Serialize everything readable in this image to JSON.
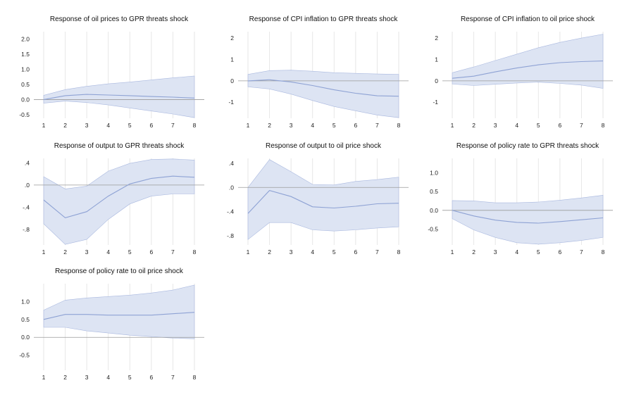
{
  "colors": {
    "band_fill": "#dde4f3",
    "band_edge": "#a9b8df",
    "line": "#8ea2d4",
    "grid": "#e6e6e6",
    "zero_line": "#9a9a9a"
  },
  "chart_data": [
    {
      "type": "area",
      "title": "Response of oil prices to GPR threats shock",
      "x": [
        1,
        2,
        3,
        4,
        5,
        6,
        7,
        8
      ],
      "xticks": [
        "1",
        "2",
        "3",
        "4",
        "5",
        "6",
        "7",
        "8"
      ],
      "yticks": [
        2.0,
        1.5,
        1.0,
        0.5,
        0.0,
        -0.5
      ],
      "ytick_labels": [
        "2.0",
        "1.5",
        "1.0",
        "0.5",
        "0.0",
        "-0.5"
      ],
      "ylim": [
        -0.62,
        2.25
      ],
      "grid": true,
      "series": [
        {
          "role": "response",
          "values": [
            0.0,
            0.13,
            0.17,
            0.15,
            0.13,
            0.1,
            0.08,
            0.05
          ]
        },
        {
          "role": "upper",
          "values": [
            0.14,
            0.33,
            0.44,
            0.52,
            0.58,
            0.65,
            0.72,
            0.78
          ]
        },
        {
          "role": "lower",
          "values": [
            -0.12,
            -0.05,
            -0.1,
            -0.18,
            -0.28,
            -0.38,
            -0.48,
            -0.6
          ]
        }
      ]
    },
    {
      "type": "area",
      "title": "Response of CPI inflation to GPR threats shock",
      "x": [
        1,
        2,
        3,
        4,
        5,
        6,
        7,
        8
      ],
      "xticks": [
        "1",
        "2",
        "3",
        "4",
        "5",
        "6",
        "7",
        "8"
      ],
      "yticks": [
        2,
        1,
        0,
        -1
      ],
      "ytick_labels": [
        "2",
        "1",
        "0",
        "-1"
      ],
      "ylim": [
        -1.75,
        2.3
      ],
      "grid": true,
      "series": [
        {
          "role": "response",
          "values": [
            0.0,
            0.05,
            -0.05,
            -0.22,
            -0.42,
            -0.58,
            -0.7,
            -0.72
          ]
        },
        {
          "role": "upper",
          "values": [
            0.3,
            0.48,
            0.5,
            0.45,
            0.38,
            0.35,
            0.32,
            0.3
          ]
        },
        {
          "role": "lower",
          "values": [
            -0.28,
            -0.38,
            -0.62,
            -0.92,
            -1.2,
            -1.4,
            -1.6,
            -1.72
          ]
        }
      ]
    },
    {
      "type": "area",
      "title": "Response of CPI inflation to oil price shock",
      "x": [
        1,
        2,
        3,
        4,
        5,
        6,
        7,
        8
      ],
      "xticks": [
        "1",
        "2",
        "3",
        "4",
        "5",
        "6",
        "7",
        "8"
      ],
      "yticks": [
        2,
        1,
        0,
        -1
      ],
      "ytick_labels": [
        "2",
        "1",
        "0",
        "-1"
      ],
      "ylim": [
        -1.75,
        2.3
      ],
      "grid": true,
      "series": [
        {
          "role": "response",
          "values": [
            0.12,
            0.22,
            0.42,
            0.6,
            0.75,
            0.85,
            0.9,
            0.93
          ]
        },
        {
          "role": "upper",
          "values": [
            0.38,
            0.65,
            0.95,
            1.25,
            1.55,
            1.8,
            2.0,
            2.18
          ]
        },
        {
          "role": "lower",
          "values": [
            -0.15,
            -0.22,
            -0.16,
            -0.1,
            -0.06,
            -0.12,
            -0.2,
            -0.35
          ]
        }
      ]
    },
    {
      "type": "area",
      "title": "Response of output to GPR threats shock",
      "x": [
        1,
        2,
        3,
        4,
        5,
        6,
        7,
        8
      ],
      "xticks": [
        "1",
        "2",
        "3",
        "4",
        "5",
        "6",
        "7",
        "8"
      ],
      "yticks": [
        0.4,
        0.0,
        -0.4,
        -0.8
      ],
      "ytick_labels": [
        ".4",
        ".0",
        "-.4",
        "-.8"
      ],
      "ylim": [
        -1.08,
        0.48
      ],
      "grid": true,
      "series": [
        {
          "role": "response",
          "values": [
            -0.27,
            -0.59,
            -0.48,
            -0.2,
            0.02,
            0.12,
            0.16,
            0.14
          ]
        },
        {
          "role": "upper",
          "values": [
            0.15,
            -0.07,
            -0.02,
            0.25,
            0.39,
            0.46,
            0.47,
            0.45
          ]
        },
        {
          "role": "lower",
          "values": [
            -0.7,
            -1.07,
            -0.98,
            -0.62,
            -0.34,
            -0.2,
            -0.16,
            -0.16
          ]
        }
      ]
    },
    {
      "type": "area",
      "title": "Response of output to oil price shock",
      "x": [
        1,
        2,
        3,
        4,
        5,
        6,
        7,
        8
      ],
      "xticks": [
        "1",
        "2",
        "3",
        "4",
        "5",
        "6",
        "7",
        "8"
      ],
      "yticks": [
        0.4,
        0.0,
        -0.4,
        -0.8
      ],
      "ytick_labels": [
        ".4",
        ".0",
        "-.4",
        "-.8"
      ],
      "ylim": [
        -0.95,
        0.48
      ],
      "grid": true,
      "series": [
        {
          "role": "response",
          "values": [
            -0.43,
            -0.05,
            -0.15,
            -0.32,
            -0.34,
            -0.31,
            -0.27,
            -0.26
          ]
        },
        {
          "role": "upper",
          "values": [
            0.0,
            0.46,
            0.26,
            0.05,
            0.04,
            0.1,
            0.13,
            0.17
          ]
        },
        {
          "role": "lower",
          "values": [
            -0.86,
            -0.58,
            -0.58,
            -0.7,
            -0.72,
            -0.7,
            -0.67,
            -0.65
          ]
        }
      ]
    },
    {
      "type": "area",
      "title": "Response of policy rate to GPR threats shock",
      "x": [
        1,
        2,
        3,
        4,
        5,
        6,
        7,
        8
      ],
      "xticks": [
        "1",
        "2",
        "3",
        "4",
        "5",
        "6",
        "7",
        "8"
      ],
      "yticks": [
        1.0,
        0.5,
        0.0,
        -0.5
      ],
      "ytick_labels": [
        "1.0",
        "0.5",
        "0.0",
        "-0.5"
      ],
      "ylim": [
        -0.92,
        1.38
      ],
      "grid": true,
      "series": [
        {
          "role": "response",
          "values": [
            0.0,
            -0.15,
            -0.26,
            -0.32,
            -0.34,
            -0.3,
            -0.25,
            -0.2
          ]
        },
        {
          "role": "upper",
          "values": [
            0.26,
            0.25,
            0.2,
            0.2,
            0.22,
            0.27,
            0.33,
            0.4
          ]
        },
        {
          "role": "lower",
          "values": [
            -0.22,
            -0.52,
            -0.72,
            -0.86,
            -0.9,
            -0.86,
            -0.8,
            -0.72
          ]
        }
      ]
    },
    {
      "type": "area",
      "title": "Response of policy rate to oil price shock",
      "x": [
        1,
        2,
        3,
        4,
        5,
        6,
        7,
        8
      ],
      "xticks": [
        "1",
        "2",
        "3",
        "4",
        "5",
        "6",
        "7",
        "8"
      ],
      "yticks": [
        1.0,
        0.5,
        0.0,
        -0.5
      ],
      "ytick_labels": [
        "1.0",
        "0.5",
        "0.0",
        "-0.5"
      ],
      "ylim": [
        -0.92,
        1.5
      ],
      "grid": true,
      "series": [
        {
          "role": "response",
          "values": [
            0.5,
            0.64,
            0.64,
            0.62,
            0.62,
            0.62,
            0.66,
            0.7
          ]
        },
        {
          "role": "upper",
          "values": [
            0.76,
            1.04,
            1.1,
            1.14,
            1.18,
            1.24,
            1.32,
            1.46
          ]
        },
        {
          "role": "lower",
          "values": [
            0.28,
            0.28,
            0.18,
            0.12,
            0.06,
            0.02,
            -0.02,
            -0.04
          ]
        }
      ]
    }
  ]
}
